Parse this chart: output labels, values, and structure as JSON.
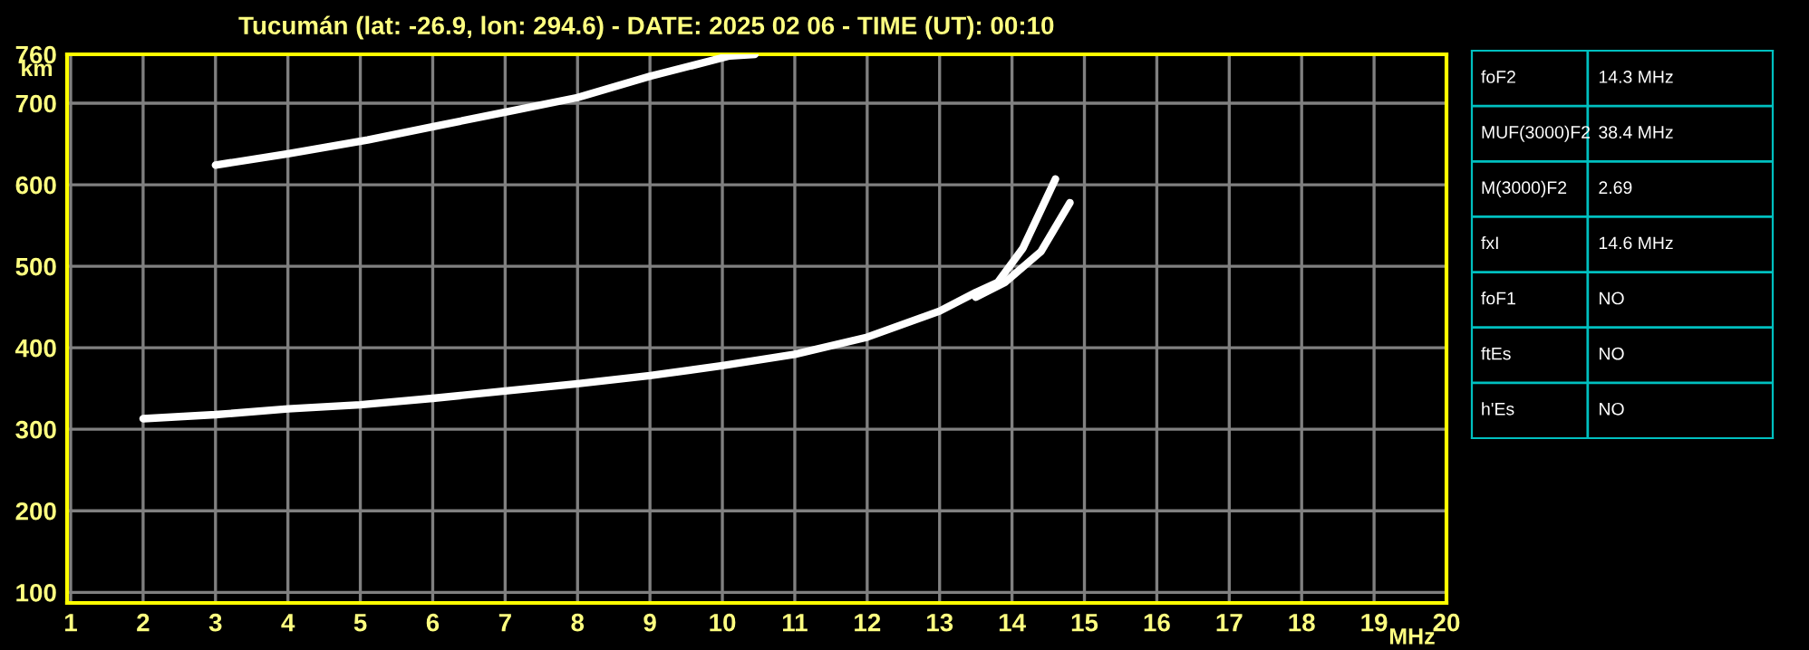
{
  "chart_data": [
    {
      "type": "line",
      "title": "Tucumán (lat: -26.9, lon: 294.6) - DATE: 2025 02 06 - TIME (UT): 00:10",
      "xlabel": "MHz",
      "ylabel": "km",
      "series": [
        {
          "color": "#ffffff",
          "x": [
            2.0,
            3.0,
            4.0,
            5.0,
            6.0,
            7.0,
            8.0,
            9.0,
            10.0,
            11.0,
            12.0,
            13.0,
            13.5,
            13.8,
            14.15,
            14.6
          ],
          "values": [
            313,
            318,
            325,
            330,
            338,
            347,
            356,
            366,
            378,
            392,
            413,
            445,
            468,
            480,
            522,
            607
          ]
        },
        {
          "color": "#ffffff",
          "x": [
            13.5,
            13.9,
            14.4,
            14.8
          ],
          "values": [
            462,
            480,
            518,
            578
          ]
        },
        {
          "color": "#ffffff",
          "x": [
            3.0,
            4.0,
            5.1,
            6.1,
            7.0,
            8.0,
            9.0,
            10.1,
            10.45
          ],
          "values": [
            624,
            638,
            655,
            673,
            689,
            707,
            733,
            758,
            760
          ]
        }
      ],
      "xlim": [
        0.95,
        20
      ],
      "ylim": [
        87,
        760
      ],
      "xticks": [
        1,
        2,
        3,
        4,
        5,
        6,
        7,
        8,
        9,
        10,
        11,
        12,
        13,
        14,
        15,
        16,
        17,
        18,
        19,
        20
      ],
      "yticks": [
        100,
        200,
        300,
        400,
        500,
        600,
        700,
        760
      ],
      "grid": true,
      "legend": false,
      "marker": "none",
      "line_style": "solid"
    },
    {
      "type": "other",
      "annotations": [
        "foF2",
        "14.3 MHz",
        "MUF(3000)F2",
        "38.4 MHz",
        "M(3000)F2",
        "2.69",
        "fxI",
        "14.6 MHz",
        "foF1",
        "NO",
        "ftEs",
        "NO",
        "h'Es",
        "NO"
      ]
    }
  ]
}
